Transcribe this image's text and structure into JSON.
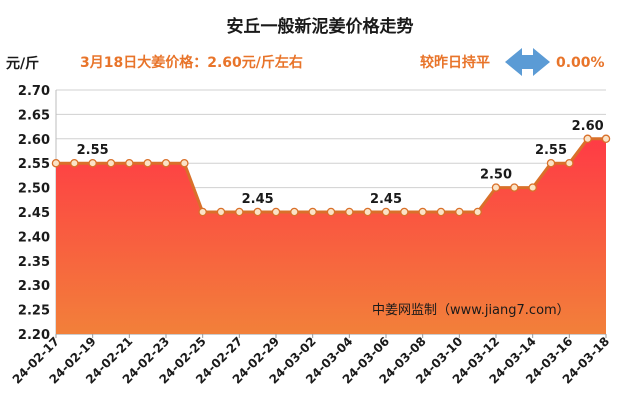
{
  "header": {
    "title": "安丘一般新泥姜价格走势",
    "unit": "元/斤",
    "price_note": "3月18日大姜价格：2.60元/斤左右",
    "compare_label": "较昨日持平",
    "compare_icon": "double-arrow-icon",
    "change_pct": "0.00%"
  },
  "watermark": "中姜网监制（www.jiang7.com）",
  "colors": {
    "accent": "#e8742a",
    "arrow": "#5b9bd5",
    "area_top": "#ff3b45",
    "area_bottom": "#f2803a",
    "line": "#d9702a"
  },
  "chart_data": {
    "type": "area",
    "title": "安丘一般新泥姜价格走势",
    "ylabel": "元/斤",
    "ylim": [
      2.2,
      2.7
    ],
    "yticks": [
      "2.70",
      "2.65",
      "2.60",
      "2.55",
      "2.50",
      "2.45",
      "2.40",
      "2.35",
      "2.30",
      "2.25",
      "2.20"
    ],
    "grid": true,
    "xtick_labels": [
      "24-02-17",
      "24-02-19",
      "24-02-21",
      "24-02-23",
      "24-02-25",
      "24-02-27",
      "24-02-29",
      "24-03-02",
      "24-03-04",
      "24-03-06",
      "24-03-08",
      "24-03-10",
      "24-03-12",
      "24-03-14",
      "24-03-16",
      "24-03-18"
    ],
    "x": [
      "24-02-17",
      "24-02-18",
      "24-02-19",
      "24-02-20",
      "24-02-21",
      "24-02-22",
      "24-02-23",
      "24-02-24",
      "24-02-25",
      "24-02-26",
      "24-02-27",
      "24-02-28",
      "24-02-29",
      "24-03-01",
      "24-03-02",
      "24-03-03",
      "24-03-04",
      "24-03-05",
      "24-03-06",
      "24-03-07",
      "24-03-08",
      "24-03-09",
      "24-03-10",
      "24-03-11",
      "24-03-12",
      "24-03-13",
      "24-03-14",
      "24-03-15",
      "24-03-16",
      "24-03-17",
      "24-03-18"
    ],
    "values": [
      2.55,
      2.55,
      2.55,
      2.55,
      2.55,
      2.55,
      2.55,
      2.55,
      2.45,
      2.45,
      2.45,
      2.45,
      2.45,
      2.45,
      2.45,
      2.45,
      2.45,
      2.45,
      2.45,
      2.45,
      2.45,
      2.45,
      2.45,
      2.45,
      2.5,
      2.5,
      2.5,
      2.55,
      2.55,
      2.6,
      2.6
    ],
    "data_labels": [
      {
        "x": "24-02-19",
        "text": "2.55"
      },
      {
        "x": "24-02-28",
        "text": "2.45"
      },
      {
        "x": "24-03-06",
        "text": "2.45"
      },
      {
        "x": "24-03-12",
        "text": "2.50"
      },
      {
        "x": "24-03-15",
        "text": "2.55"
      },
      {
        "x": "24-03-17",
        "text": "2.60"
      }
    ]
  }
}
